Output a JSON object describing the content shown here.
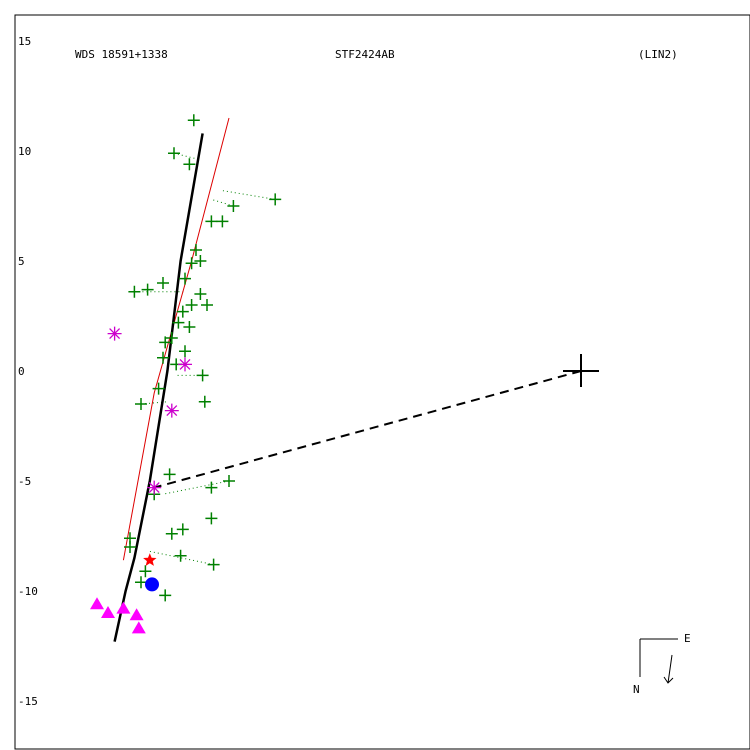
{
  "chart_data": {
    "type": "scatter",
    "title_left": "WDS 18591+1338",
    "title_center": "STF2424AB",
    "title_right": "(LIN2)",
    "xlabel": "",
    "ylabel": "",
    "ylim": [
      -15,
      15
    ],
    "yticks": [
      15,
      10,
      5,
      0,
      -5,
      -10,
      -15
    ],
    "primary_star": {
      "x": 0,
      "y": 0
    },
    "orbit_track_black": [
      [
        -17.2,
        10.8
      ],
      [
        -18.2,
        5.0
      ],
      [
        -18.8,
        0.0
      ],
      [
        -19.6,
        -5.0
      ],
      [
        -20.3,
        -8.5
      ],
      [
        -20.7,
        -10.0
      ],
      [
        -21.2,
        -12.3
      ]
    ],
    "orbit_track_red": [
      [
        -16.0,
        11.5
      ],
      [
        -17.7,
        5.0
      ],
      [
        -19.4,
        -1.0
      ],
      [
        -20.8,
        -8.6
      ]
    ],
    "series": [
      {
        "name": "",
        "marker": "plus",
        "color": "#008000",
        "points": [
          [
            -17.6,
            11.4
          ],
          [
            -18.5,
            9.9
          ],
          [
            -17.8,
            9.4
          ],
          [
            -13.9,
            7.8
          ],
          [
            -15.8,
            7.5
          ],
          [
            -16.8,
            6.8
          ],
          [
            -16.3,
            6.8
          ],
          [
            -17.5,
            5.5
          ],
          [
            -17.3,
            5.0
          ],
          [
            -17.7,
            4.9
          ],
          [
            -18.0,
            4.2
          ],
          [
            -19.0,
            4.0
          ],
          [
            -20.3,
            3.6
          ],
          [
            -19.7,
            3.7
          ],
          [
            -17.3,
            3.5
          ],
          [
            -17.7,
            3.0
          ],
          [
            -18.1,
            2.7
          ],
          [
            -17.0,
            3.0
          ],
          [
            -18.3,
            2.2
          ],
          [
            -17.8,
            2.0
          ],
          [
            -18.6,
            1.5
          ],
          [
            -18.9,
            1.3
          ],
          [
            -18.0,
            0.9
          ],
          [
            -19.0,
            0.6
          ],
          [
            -18.4,
            0.3
          ],
          [
            -17.2,
            -0.2
          ],
          [
            -19.2,
            -0.8
          ],
          [
            -20.0,
            -1.5
          ],
          [
            -17.1,
            -1.4
          ],
          [
            -18.7,
            -4.7
          ],
          [
            -16.0,
            -5.0
          ],
          [
            -19.4,
            -5.6
          ],
          [
            -16.8,
            -5.3
          ],
          [
            -16.8,
            -6.7
          ],
          [
            -18.6,
            -7.4
          ],
          [
            -18.1,
            -7.2
          ],
          [
            -20.5,
            -7.6
          ],
          [
            -20.5,
            -8.0
          ],
          [
            -18.2,
            -8.4
          ],
          [
            -16.7,
            -8.8
          ],
          [
            -19.8,
            -9.1
          ],
          [
            -20.0,
            -9.6
          ],
          [
            -18.9,
            -10.2
          ]
        ]
      },
      {
        "name": "",
        "marker": "asterisk",
        "color": "#cc00cc",
        "points": [
          [
            -21.2,
            1.7
          ],
          [
            -18.0,
            0.3
          ],
          [
            -18.6,
            -1.8
          ],
          [
            -19.4,
            -5.3
          ]
        ]
      },
      {
        "name": "",
        "marker": "star",
        "color": "#ff0000",
        "points": [
          [
            -19.6,
            -8.6
          ]
        ]
      },
      {
        "name": "",
        "marker": "circle",
        "color": "#0000ff",
        "points": [
          [
            -19.5,
            -9.7
          ]
        ]
      },
      {
        "name": "",
        "marker": "triangle",
        "color": "#ff00ff",
        "points": [
          [
            -22.0,
            -10.6
          ],
          [
            -21.5,
            -11.0
          ],
          [
            -20.8,
            -10.8
          ],
          [
            -20.2,
            -11.1
          ],
          [
            -20.1,
            -11.7
          ]
        ]
      }
    ],
    "residual_links": [
      [
        [
          -13.9,
          7.8
        ],
        [
          -16.3,
          8.2
        ]
      ],
      [
        [
          -15.8,
          7.5
        ],
        [
          -16.8,
          7.8
        ]
      ],
      [
        [
          -16.0,
          -5.0
        ],
        [
          -19.0,
          -5.6
        ]
      ],
      [
        [
          -16.7,
          -8.8
        ],
        [
          -19.6,
          -8.2
        ]
      ],
      [
        [
          -18.5,
          9.9
        ],
        [
          -17.3,
          9.6
        ]
      ],
      [
        [
          -20.3,
          3.6
        ],
        [
          -18.0,
          3.6
        ]
      ],
      [
        [
          -20.0,
          -1.5
        ],
        [
          -18.8,
          -1.4
        ]
      ],
      [
        [
          -17.2,
          -0.2
        ],
        [
          -18.4,
          -0.2
        ]
      ]
    ],
    "dashed_line": [
      [
        0,
        0
      ],
      [
        -19.4,
        -5.3
      ]
    ],
    "compass": {
      "east_label": "E",
      "north_label": "N"
    }
  }
}
